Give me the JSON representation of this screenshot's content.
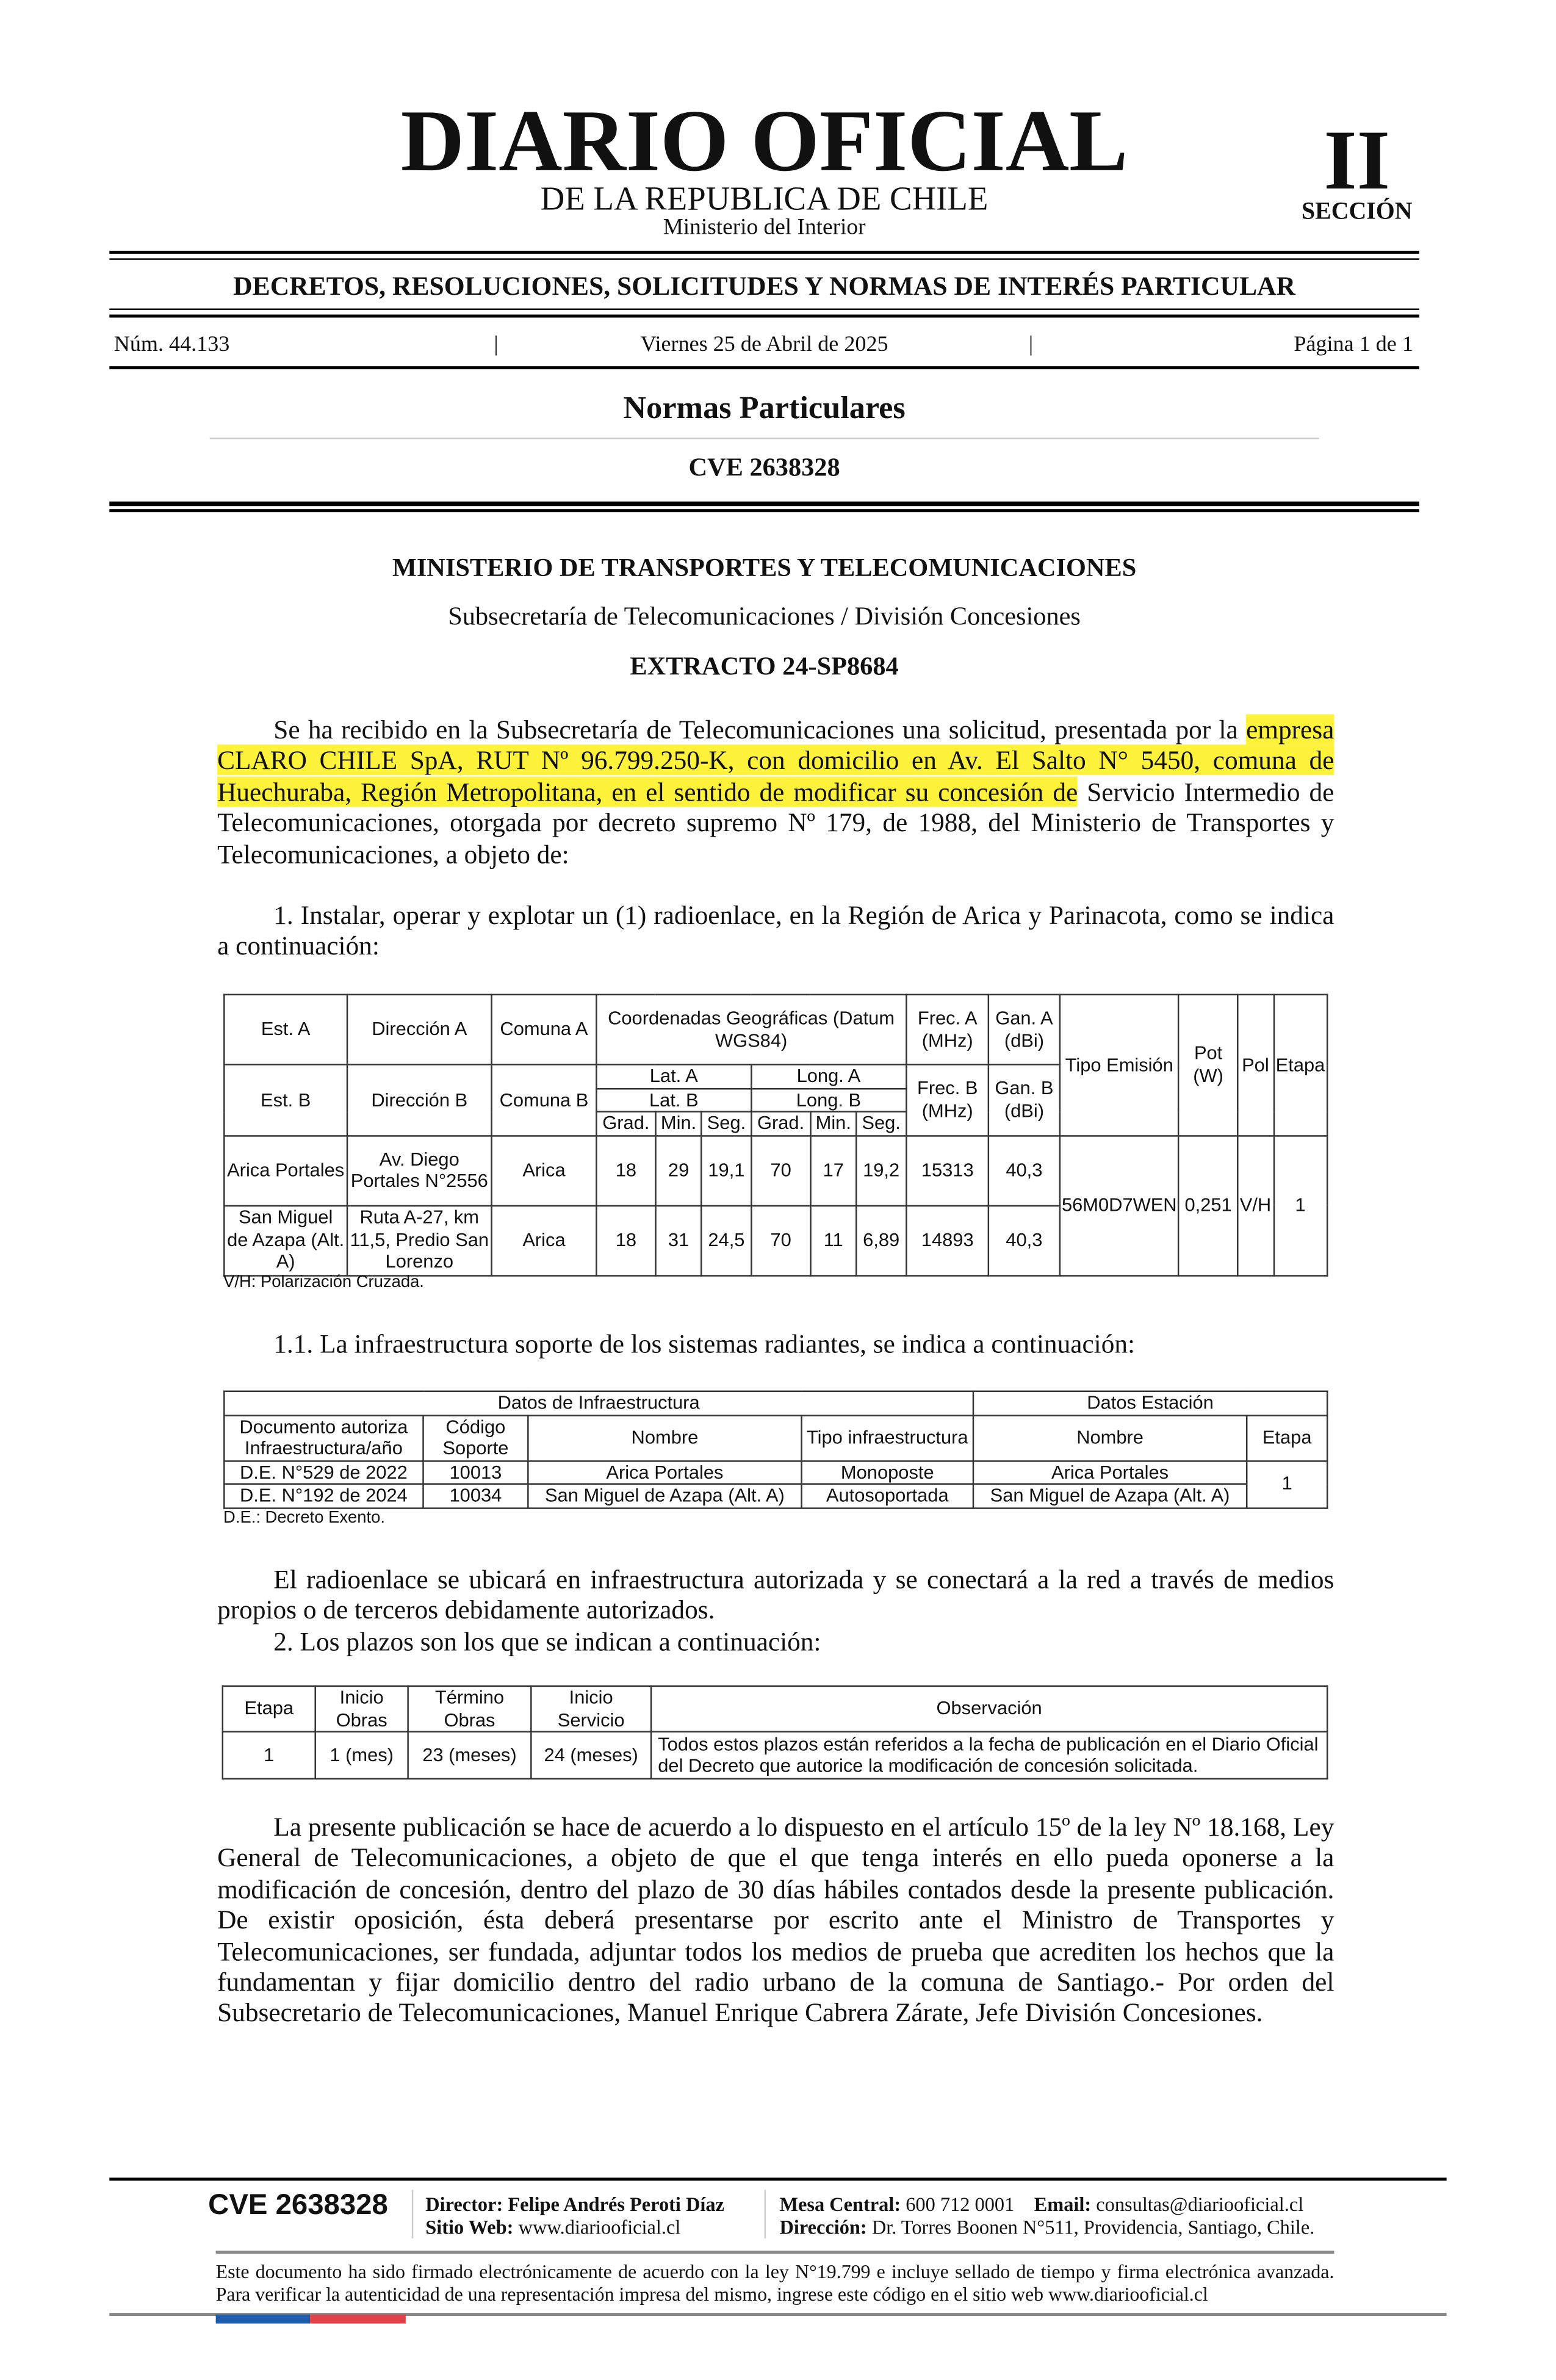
{
  "header": {
    "title": "DIARIO OFICIAL",
    "subtitle": "DE LA REPUBLICA DE CHILE",
    "ministry": "Ministerio del Interior",
    "section_number": "II",
    "section_label": "SECCIÓN",
    "category": "DECRETOS, RESOLUCIONES, SOLICITUDES Y NORMAS DE INTERÉS PARTICULAR",
    "issue": "Núm. 44.133",
    "date": "Viernes 25 de Abril de 2025",
    "page": "Página 1 de 1",
    "separator": "|",
    "rubric": "Normas Particulares",
    "cve": "CVE 2638328"
  },
  "body": {
    "ministry": "MINISTERIO DE TRANSPORTES Y TELECOMUNICACIONES",
    "division": "Subsecretaría de Telecomunicaciones / División Concesiones",
    "extract": "EXTRACTO 24-SP8684",
    "intro_a": "Se ha recibido en la Subsecretaría de Telecomunicaciones una solicitud, presentada por la ",
    "intro_highlight": "empresa CLARO CHILE SpA, RUT Nº 96.799.250-K, con domicilio en Av. El Salto N° 5450, comuna de Huechuraba, Región Metropolitana, en el sentido de modificar su concesión de",
    "intro_b": " Servicio Intermedio de Telecomunicaciones, otorgada por decreto supremo Nº 179, de 1988, del Ministerio de Transportes y Telecomunicaciones, a objeto de:",
    "item1": "1. Instalar, operar y explotar un (1) radioenlace, en la Región de Arica y Parinacota, como se indica a continuación:",
    "table1_note": "V/H: Polarización Cruzada.",
    "item11": "1.1. La infraestructura soporte de los sistemas radiantes, se indica a continuación:",
    "table2_note": "D.E.: Decreto Exento.",
    "para_link": "El radioenlace se ubicará en infraestructura autorizada y se conectará a la red a través de medios propios o de terceros debidamente autorizados.",
    "item2": "2. Los plazos son los que se indican a continuación:",
    "closing": "La presente publicación se hace de acuerdo a lo dispuesto en el artículo 15º de la ley Nº 18.168, Ley General de Telecomunicaciones, a objeto de que el que tenga interés en ello pueda oponerse a la modificación de concesión, dentro del plazo de 30 días hábiles contados desde la presente publicación. De existir oposición, ésta deberá presentarse por escrito ante el Ministro de Transportes y Telecomunicaciones, ser fundada, adjuntar todos los medios de prueba que acrediten los hechos que la fundamentan y fijar domicilio dentro del radio urbano de la comuna de Santiago.- Por orden del Subsecretario de Telecomunicaciones, Manuel Enrique Cabrera Zárate, Jefe División Concesiones."
  },
  "table1": {
    "h": {
      "est_a": "Est. A",
      "dir_a": "Dirección A",
      "com_a": "Comuna A",
      "coords": "Coordenadas Geográficas (Datum WGS84)",
      "frec_a": "Frec. A (MHz)",
      "gan_a": "Gan. A (dBi)",
      "tipo": "Tipo Emisión",
      "pot": "Pot (W)",
      "pol": "Pol",
      "etapa": "Etapa",
      "lat_a": "Lat. A",
      "long_a": "Long. A",
      "est_b": "Est. B",
      "dir_b": "Dirección B",
      "com_b": "Comuna B",
      "lat_b": "Lat. B",
      "long_b": "Long. B",
      "frec_b": "Frec. B (MHz)",
      "gan_b": "Gan. B (dBi)",
      "grad": "Grad.",
      "min": "Min.",
      "seg": "Seg."
    },
    "rows": [
      {
        "est": "Arica Portales",
        "dir": "Av. Diego Portales N°2556",
        "com": "Arica",
        "lat": [
          "18",
          "29",
          "19,1"
        ],
        "long": [
          "70",
          "17",
          "19,2"
        ],
        "frec": "15313",
        "gan": "40,3"
      },
      {
        "est": "San Miguel de Azapa (Alt. A)",
        "dir": "Ruta A-27, km 11,5, Predio San Lorenzo",
        "com": "Arica",
        "lat": [
          "18",
          "31",
          "24,5"
        ],
        "long": [
          "70",
          "11",
          "6,89"
        ],
        "frec": "14893",
        "gan": "40,3"
      }
    ],
    "tipo": "56M0D7WEN",
    "pot": "0,251",
    "pol": "V/H",
    "etapa": "1"
  },
  "table2": {
    "h": {
      "infra": "Datos de Infraestructura",
      "estacion": "Datos Estación",
      "doc": "Documento autoriza Infraestructura/año",
      "codigo": "Código Soporte",
      "nombre": "Nombre",
      "tipo": "Tipo infraestructura",
      "nombre_est": "Nombre",
      "etapa": "Etapa"
    },
    "rows": [
      {
        "doc": "D.E. N°529 de 2022",
        "codigo": "10013",
        "nombre": "Arica Portales",
        "tipo": "Monoposte",
        "estacion": "Arica Portales"
      },
      {
        "doc": "D.E. N°192 de 2024",
        "codigo": "10034",
        "nombre": "San Miguel de Azapa (Alt. A)",
        "tipo": "Autosoportada",
        "estacion": "San Miguel de Azapa (Alt. A)"
      }
    ],
    "etapa": "1"
  },
  "table3": {
    "h": {
      "etapa": "Etapa",
      "inicio": "Inicio Obras",
      "termino": "Término Obras",
      "servicio": "Inicio Servicio",
      "obs": "Observación"
    },
    "row": {
      "etapa": "1",
      "inicio": "1 (mes)",
      "termino": "23 (meses)",
      "servicio": "24 (meses)",
      "obs": "Todos estos plazos están referidos a la fecha de publicación en el Diario Oficial del Decreto que autorice la modificación de concesión solicitada."
    }
  },
  "footer": {
    "cve": "CVE 2638328",
    "director_label": "Director:",
    "director": "Felipe Andrés Peroti Díaz",
    "web_label": "Sitio Web:",
    "web": "www.diariooficial.cl",
    "phone_label": "Mesa Central:",
    "phone": "600 712 0001",
    "email_label": "Email:",
    "email": "consultas@diariooficial.cl",
    "address_label": "Dirección:",
    "address": "Dr. Torres Boonen N°511, Providencia, Santiago, Chile.",
    "legal": "Este documento ha sido firmado electrónicamente de acuerdo con la ley N°19.799 e incluye sellado de tiempo y firma electrónica avanzada. Para verificar la autenticidad de una representación impresa del mismo, ingrese este código en el sitio web www.diariooficial.cl",
    "flag_colors": [
      "#1f5fae",
      "#e0444a"
    ]
  }
}
